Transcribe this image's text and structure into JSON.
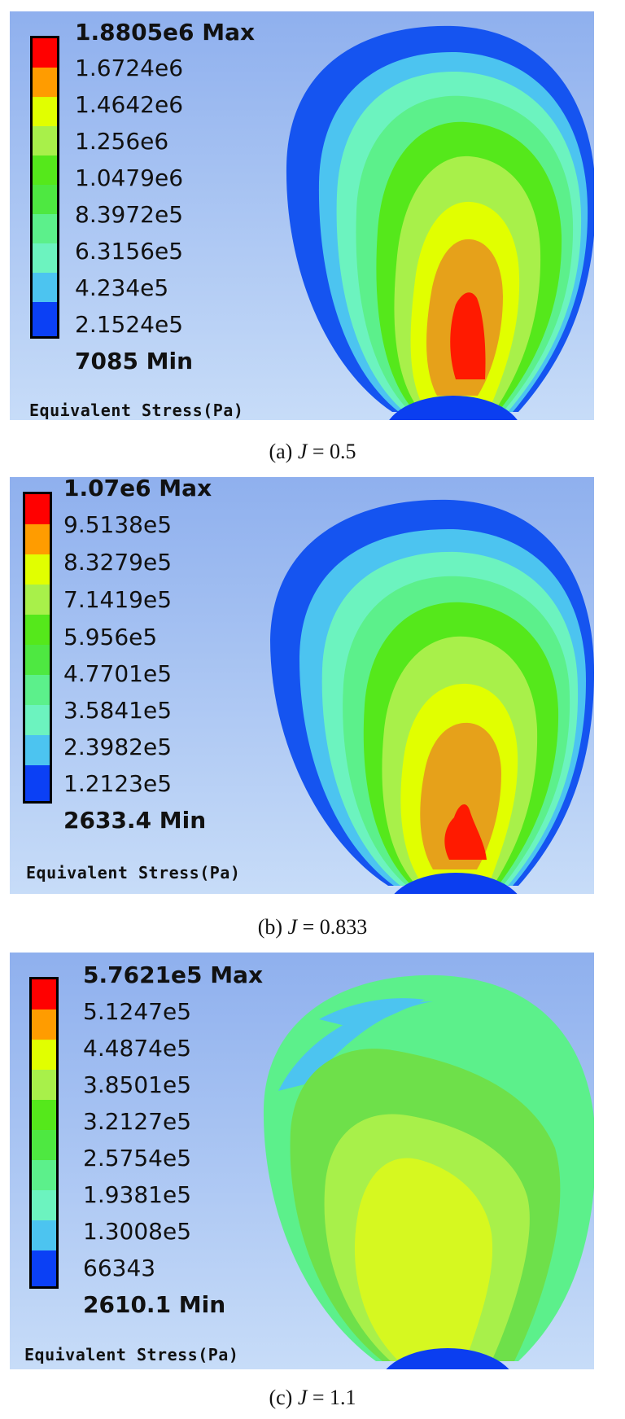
{
  "colors": {
    "bg_top": "#8fb0ee",
    "bg_bottom": "#c7dcf8",
    "scale": [
      "#ff0000",
      "#ff9c00",
      "#e1ff00",
      "#a8f04a",
      "#55e81b",
      "#4ee841",
      "#5cf08b",
      "#6cf3bf",
      "#4cc4f0",
      "#0b40f5"
    ],
    "hub": "#0b3ef0"
  },
  "panels": [
    {
      "max": "1.8805e6 Max",
      "levels": [
        "1.6724e6",
        "1.4642e6",
        "1.256e6",
        "1.0479e6",
        "8.3972e5",
        "6.3156e5",
        "4.234e5",
        "2.1524e5"
      ],
      "min": "7085 Min",
      "unit": "Equivalent Stress(Pa)",
      "caption_prefix": "(a) ",
      "caption_var": "J",
      "caption_value": " = 0.5"
    },
    {
      "max": "1.07e6 Max",
      "levels": [
        "9.5138e5",
        "8.3279e5",
        "7.1419e5",
        "5.956e5",
        "4.7701e5",
        "3.5841e5",
        "2.3982e5",
        "1.2123e5"
      ],
      "min": "2633.4 Min",
      "unit": "Equivalent Stress(Pa)",
      "caption_prefix": "(b) ",
      "caption_var": "J",
      "caption_value": " = 0.833"
    },
    {
      "max": "5.7621e5 Max",
      "levels": [
        "5.1247e5",
        "4.4874e5",
        "3.8501e5",
        "3.2127e5",
        "2.5754e5",
        "1.9381e5",
        "1.3008e5",
        "66343"
      ],
      "min": "2610.1 Min",
      "unit": "Equivalent Stress(Pa)",
      "caption_prefix": "(c) ",
      "caption_var": "J",
      "caption_value": " = 1.1"
    }
  ]
}
